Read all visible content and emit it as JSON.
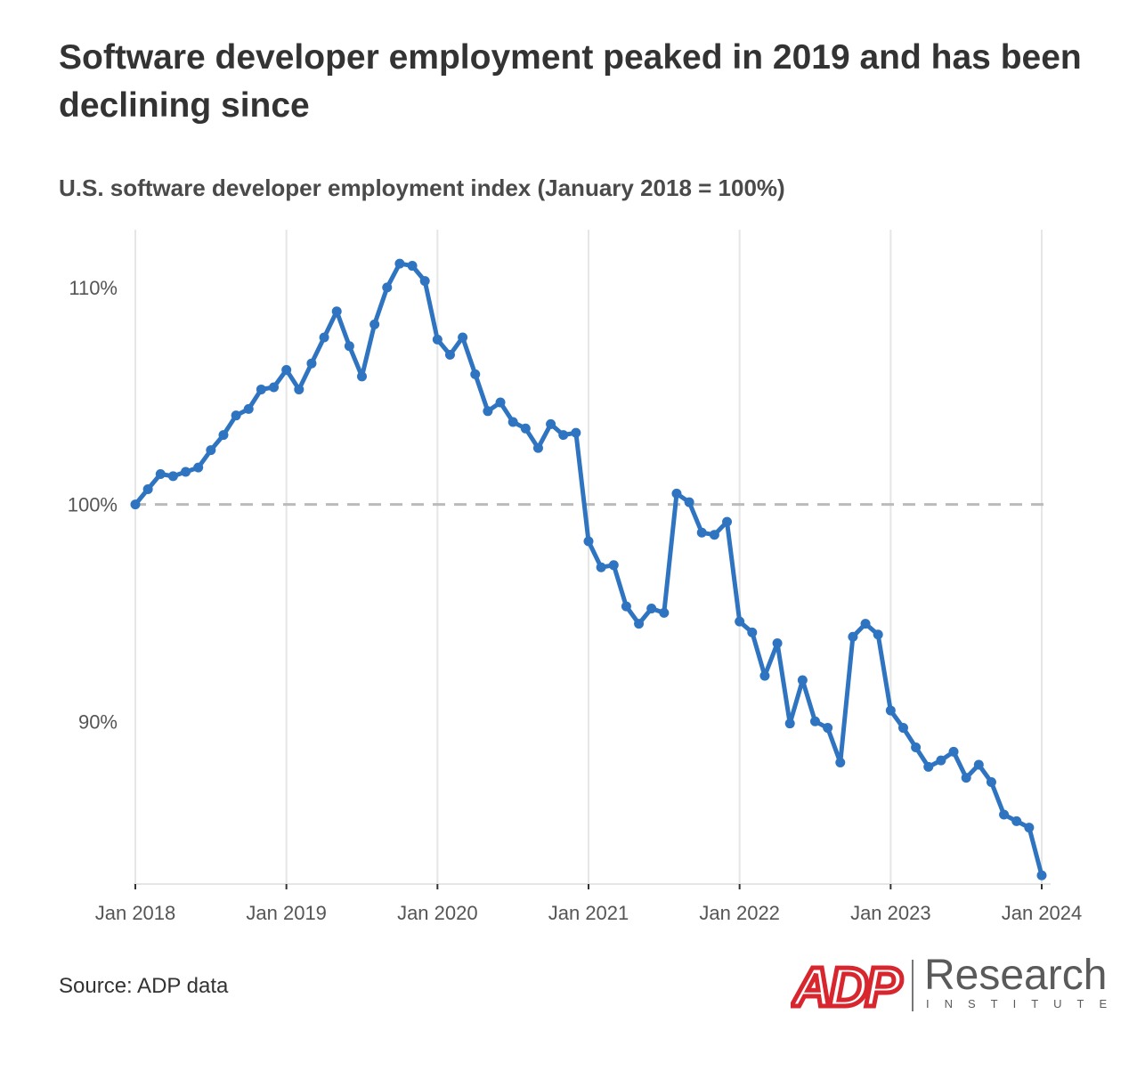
{
  "title": "Software developer employment peaked in 2019 and has been declining since",
  "subtitle": "U.S. software developer employment index (January 2018 = 100%)",
  "source": "Source: ADP data",
  "logo": {
    "brand": "ADP",
    "name": "Research",
    "tagline": "INSTITUTE"
  },
  "colors": {
    "series": "#2f74c0",
    "reference_line": "#bbbbbb",
    "logo_red": "#d8262f",
    "grid": "#e6e6e6"
  },
  "chart_data": {
    "type": "line",
    "x_start": "Jan 2018",
    "x_tick_labels": [
      "Jan 2018",
      "Jan 2019",
      "Jan 2020",
      "Jan 2021",
      "Jan 2022",
      "Jan 2023",
      "Jan 2024"
    ],
    "y_tick_labels": [
      "90%",
      "100%",
      "110%"
    ],
    "y_ticks": [
      90,
      100,
      110
    ],
    "ylim": [
      82.5,
      112.5
    ],
    "reference_line": 100,
    "grid": "vertical",
    "series": [
      {
        "values": [
          100.0,
          100.7,
          101.4,
          101.3,
          101.5,
          101.7,
          102.5,
          103.2,
          104.1,
          104.4,
          105.3,
          105.4,
          106.2,
          105.3,
          106.5,
          107.7,
          108.9,
          107.3,
          105.9,
          108.3,
          110.0,
          111.1,
          111.0,
          110.3,
          107.6,
          106.9,
          107.7,
          106.0,
          104.3,
          104.7,
          103.8,
          103.5,
          102.6,
          103.7,
          103.2,
          103.3,
          98.3,
          97.1,
          97.2,
          95.3,
          94.5,
          95.2,
          95.0,
          100.5,
          100.1,
          98.7,
          98.6,
          99.2,
          94.6,
          94.1,
          92.1,
          93.6,
          89.9,
          91.9,
          90.0,
          89.7,
          88.1,
          93.9,
          94.5,
          94.0,
          90.5,
          89.7,
          88.8,
          87.9,
          88.2,
          88.6,
          87.4,
          88.0,
          87.2,
          85.7,
          85.4,
          85.1,
          82.9
        ]
      }
    ]
  }
}
